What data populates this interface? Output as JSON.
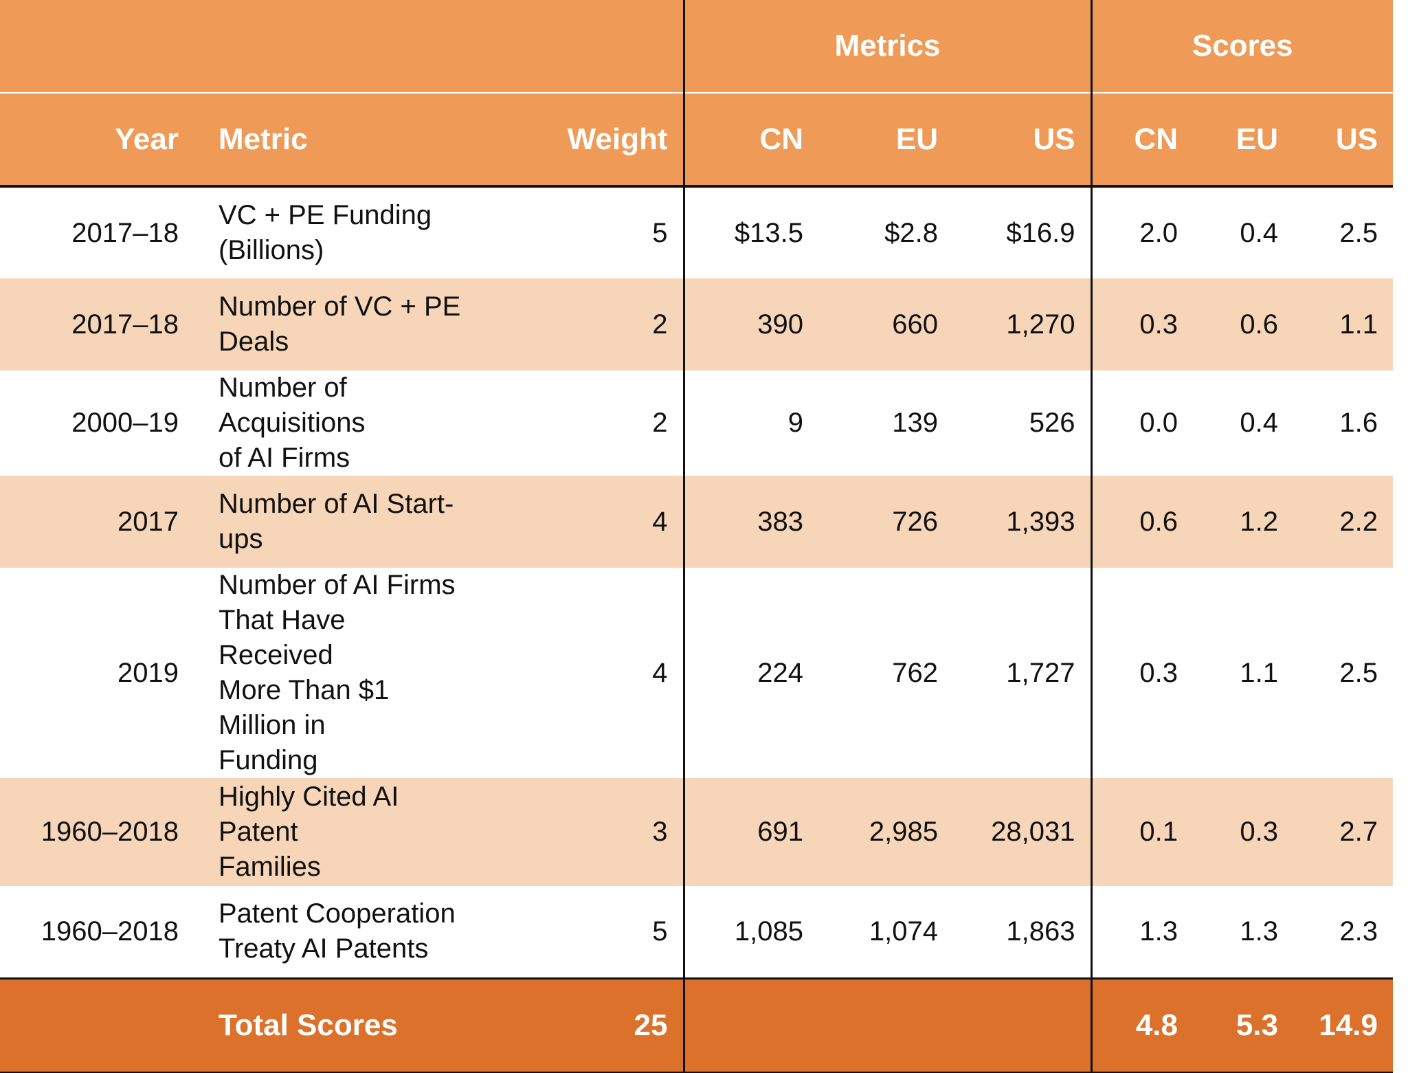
{
  "header": {
    "group_metrics": "Metrics",
    "group_scores": "Scores",
    "col_year": "Year",
    "col_metric": "Metric",
    "col_weight": "Weight",
    "metrics_cols": [
      "CN",
      "EU",
      "US"
    ],
    "scores_cols": [
      "CN",
      "EU",
      "US"
    ]
  },
  "rows": [
    {
      "year": "2017–18",
      "metric": [
        "VC + PE Funding",
        "(Billions)"
      ],
      "weight": "5",
      "m": [
        "$13.5",
        "$2.8",
        "$16.9"
      ],
      "s": [
        "2.0",
        "0.4",
        "2.5"
      ]
    },
    {
      "year": "2017–18",
      "metric": [
        "Number of VC + PE",
        "Deals"
      ],
      "weight": "2",
      "m": [
        "390",
        "660",
        "1,270"
      ],
      "s": [
        "0.3",
        "0.6",
        "1.1"
      ]
    },
    {
      "year": "2000–19",
      "metric": [
        "Number of Acquisitions",
        "of AI Firms"
      ],
      "weight": "2",
      "m": [
        "9",
        "139",
        "526"
      ],
      "s": [
        "0.0",
        "0.4",
        "1.6"
      ]
    },
    {
      "year": "2017",
      "metric": [
        "Number of AI Start-ups"
      ],
      "weight": "4",
      "m": [
        "383",
        "726",
        "1,393"
      ],
      "s": [
        "0.6",
        "1.2",
        "2.2"
      ]
    },
    {
      "year": "2019",
      "metric": [
        "Number of AI Firms",
        "That Have Received",
        "More Than $1 Million in",
        "Funding"
      ],
      "weight": "4",
      "m": [
        "224",
        "762",
        "1,727"
      ],
      "s": [
        "0.3",
        "1.1",
        "2.5"
      ]
    },
    {
      "year": "1960–2018",
      "metric": [
        "Highly Cited AI Patent",
        "Families"
      ],
      "weight": "3",
      "m": [
        "691",
        "2,985",
        "28,031"
      ],
      "s": [
        "0.1",
        "0.3",
        "2.7"
      ]
    },
    {
      "year": "1960–2018",
      "metric": [
        "Patent Cooperation",
        "Treaty AI Patents"
      ],
      "weight": "5",
      "m": [
        "1,085",
        "1,074",
        "1,863"
      ],
      "s": [
        "1.3",
        "1.3",
        "2.3"
      ]
    }
  ],
  "total": {
    "label": "Total Scores",
    "weight": "25",
    "scores": [
      "4.8",
      "5.3",
      "14.9"
    ]
  }
}
